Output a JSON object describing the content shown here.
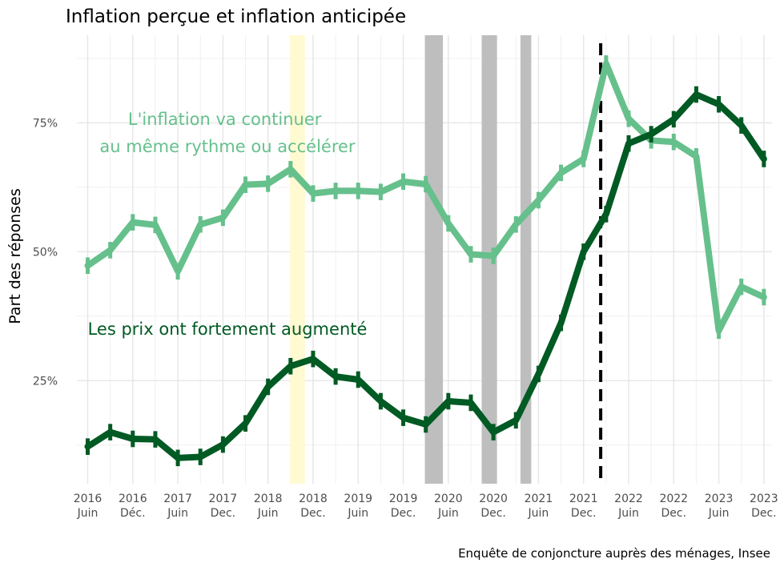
{
  "chart_data": {
    "type": "line",
    "title": "Inflation perçue et inflation anticipée",
    "ylabel": "Part des réponses",
    "caption": "Enquête de conjoncture auprès des ménages, Insee",
    "ylim": [
      0.05,
      0.92
    ],
    "yticks": [
      {
        "value": 0.25,
        "label": "25%"
      },
      {
        "value": 0.5,
        "label": "50%"
      },
      {
        "value": 0.75,
        "label": "75%"
      }
    ],
    "xlim": [
      2016.3,
      2024.01
    ],
    "xticks": [
      {
        "x": 2016.42,
        "year": "2016",
        "month": "Juin"
      },
      {
        "x": 2016.92,
        "year": "2016",
        "month": "Déc."
      },
      {
        "x": 2017.42,
        "year": "2017",
        "month": "Juin"
      },
      {
        "x": 2017.92,
        "year": "2017",
        "month": "Dec."
      },
      {
        "x": 2018.42,
        "year": "2018",
        "month": "Juin"
      },
      {
        "x": 2018.92,
        "year": "2018",
        "month": "Dec."
      },
      {
        "x": 2019.42,
        "year": "2019",
        "month": "Juin"
      },
      {
        "x": 2019.92,
        "year": "2019",
        "month": "Dec."
      },
      {
        "x": 2020.42,
        "year": "2020",
        "month": "Juin"
      },
      {
        "x": 2020.92,
        "year": "2020",
        "month": "Dec."
      },
      {
        "x": 2021.42,
        "year": "2021",
        "month": "Juin"
      },
      {
        "x": 2021.92,
        "year": "2021",
        "month": "Dec."
      },
      {
        "x": 2022.42,
        "year": "2022",
        "month": "Juin"
      },
      {
        "x": 2022.92,
        "year": "2022",
        "month": "Dec."
      },
      {
        "x": 2023.42,
        "year": "2023",
        "month": "Juin"
      },
      {
        "x": 2023.92,
        "year": "2023",
        "month": "Dec."
      }
    ],
    "shaded_periods": [
      {
        "start": 2018.66,
        "end": 2018.83,
        "color": "#fffad2"
      },
      {
        "start": 2020.16,
        "end": 2020.36,
        "color": "#bebebe"
      },
      {
        "start": 2020.79,
        "end": 2020.96,
        "color": "#bebebe"
      },
      {
        "start": 2021.22,
        "end": 2021.34,
        "color": "#bebebe"
      }
    ],
    "vline": {
      "x": 2022.11,
      "color": "#000000"
    },
    "series": [
      {
        "name": "L'inflation va continuer au même rythme ou accélérer",
        "color": "#66c08c",
        "x": [
          2016.42,
          2016.67,
          2016.92,
          2017.17,
          2017.42,
          2017.67,
          2017.92,
          2018.17,
          2018.42,
          2018.67,
          2018.92,
          2019.17,
          2019.42,
          2019.67,
          2019.92,
          2020.17,
          2020.42,
          2020.67,
          2020.92,
          2021.17,
          2021.42,
          2021.67,
          2021.92,
          2022.17,
          2022.42,
          2022.67,
          2022.92,
          2023.17,
          2023.42,
          2023.67,
          2023.92
        ],
        "y": [
          0.473,
          0.503,
          0.557,
          0.552,
          0.462,
          0.553,
          0.566,
          0.63,
          0.632,
          0.66,
          0.613,
          0.618,
          0.618,
          0.616,
          0.636,
          0.631,
          0.555,
          0.495,
          0.492,
          0.553,
          0.6,
          0.653,
          0.68,
          0.865,
          0.758,
          0.716,
          0.713,
          0.685,
          0.347,
          0.432,
          0.412
        ],
        "err": 0.016
      },
      {
        "name": "Les prix ont fortement augmenté",
        "color": "#005a23",
        "x": [
          2016.42,
          2016.67,
          2016.92,
          2017.17,
          2017.42,
          2017.67,
          2017.92,
          2018.17,
          2018.42,
          2018.67,
          2018.92,
          2019.17,
          2019.42,
          2019.67,
          2019.92,
          2020.17,
          2020.42,
          2020.67,
          2020.92,
          2021.17,
          2021.42,
          2021.67,
          2021.92,
          2022.17,
          2022.42,
          2022.67,
          2022.92,
          2023.17,
          2023.42,
          2023.67,
          2023.92
        ],
        "y": [
          0.122,
          0.15,
          0.137,
          0.136,
          0.1,
          0.102,
          0.126,
          0.167,
          0.238,
          0.278,
          0.292,
          0.258,
          0.252,
          0.21,
          0.178,
          0.165,
          0.21,
          0.207,
          0.15,
          0.173,
          0.263,
          0.362,
          0.5,
          0.573,
          0.71,
          0.728,
          0.757,
          0.805,
          0.786,
          0.745,
          0.68
        ],
        "err": 0.016
      }
    ],
    "annotations": [
      {
        "lines": [
          "L'inflation va continuer",
          "au même rythme ou accélérer"
        ],
        "color": "#66c08c"
      },
      {
        "lines": [
          "Les prix ont fortement augmenté"
        ],
        "color": "#005a23"
      }
    ],
    "grid": true,
    "legend": "none"
  }
}
